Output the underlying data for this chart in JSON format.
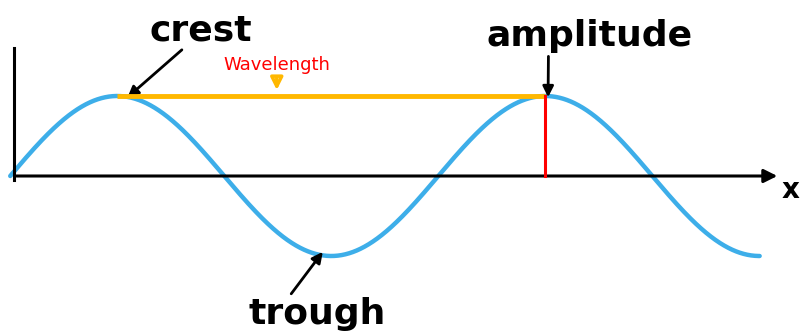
{
  "background_color": "#ffffff",
  "wave_color": "#3daee9",
  "wave_linewidth": 3.2,
  "amplitude": 1.0,
  "axis_color": "#000000",
  "crest_label": "crest",
  "trough_label": "trough",
  "amplitude_label": "amplitude",
  "wavelength_label": "Wavelength",
  "x_label": "x",
  "label_fontsize": 26,
  "wavelength_fontsize": 13,
  "x_label_fontsize": 20,
  "gold_color": "#FFB800",
  "red_color": "#FF0000",
  "arrow_color": "#000000",
  "wavelength_arrow_color": "#FFB800",
  "wave_x_start": 0.0,
  "wave_x_end": 11.0,
  "wave_freq": 1.0,
  "wave_phase": 0.0,
  "xlim_left": -0.15,
  "xlim_right": 11.5,
  "ylim_bottom": -2.0,
  "ylim_top": 2.2,
  "yaxis_x": 0.05,
  "first_crest_x": 1.5707963,
  "second_crest_x": 7.8539816,
  "first_trough_x": 4.7123889
}
